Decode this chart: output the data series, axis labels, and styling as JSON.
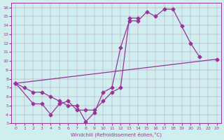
{
  "xlabel": "Windchill (Refroidissement éolien,°C)",
  "bg_color": "#d0eeee",
  "line_color": "#993399",
  "xlim": [
    -0.5,
    23.5
  ],
  "ylim": [
    3,
    16.5
  ],
  "xticks": [
    0,
    1,
    2,
    3,
    4,
    5,
    6,
    7,
    8,
    9,
    10,
    11,
    12,
    13,
    14,
    15,
    16,
    17,
    18,
    19,
    20,
    21,
    22,
    23
  ],
  "yticks": [
    3,
    4,
    5,
    6,
    7,
    8,
    9,
    10,
    11,
    12,
    13,
    14,
    15,
    16
  ],
  "series": [
    {
      "x": [
        0,
        1,
        2,
        3,
        4,
        5,
        6,
        7,
        8,
        9,
        10,
        11,
        12,
        13,
        14,
        15,
        16,
        17,
        18,
        19,
        20,
        21
      ],
      "y": [
        7.5,
        7.0,
        6.5,
        6.5,
        6.0,
        5.5,
        5.0,
        5.0,
        3.2,
        4.2,
        6.5,
        7.0,
        11.5,
        14.5,
        14.5,
        15.5,
        15.0,
        15.8,
        15.8,
        13.9,
        12.0,
        10.5
      ]
    },
    {
      "x": [
        0,
        2,
        3,
        4,
        5,
        6,
        7,
        8,
        9,
        10,
        11,
        12,
        13,
        14
      ],
      "y": [
        7.5,
        5.2,
        5.2,
        4.0,
        5.2,
        5.5,
        4.5,
        4.5,
        4.5,
        5.5,
        6.5,
        7.0,
        14.8,
        14.8
      ]
    },
    {
      "x": [
        0,
        23
      ],
      "y": [
        7.5,
        10.2
      ]
    }
  ]
}
